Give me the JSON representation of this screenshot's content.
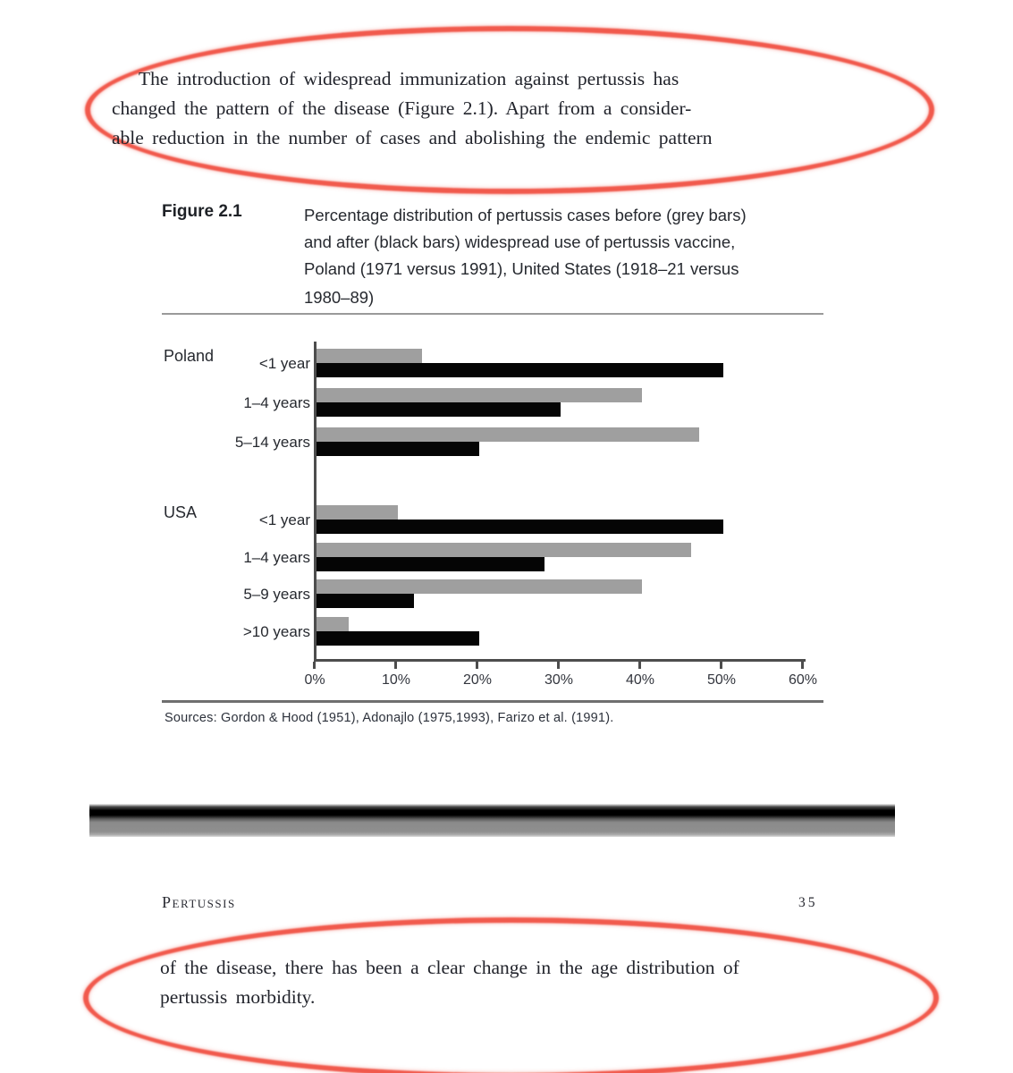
{
  "paragraph_top": {
    "line1": "The introduction of widespread immunization against pertussis has",
    "line2": "changed the pattern of the disease (Figure 2.1). Apart from a consider-",
    "line3": "able reduction in the number of cases and abolishing the endemic pattern"
  },
  "figure": {
    "label": "Figure 2.1",
    "caption_lines": [
      "Percentage distribution of pertussis cases before (grey bars)",
      "and after (black bars) widespread use of pertussis vaccine,",
      "Poland (1971 versus 1991), United States (1918–21 versus",
      "1980–89)"
    ]
  },
  "chart_data": {
    "type": "bar",
    "orientation": "horizontal",
    "title": "Percentage distribution of pertussis cases before (grey bars) and after (black bars) widespread use of pertussis vaccine, Poland (1971 versus 1991), United States (1918–21 versus 1980–89)",
    "xlabel": "",
    "ylabel": "",
    "xlim": [
      0,
      60
    ],
    "x_ticks": [
      "0%",
      "10%",
      "20%",
      "30%",
      "40%",
      "50%",
      "60%"
    ],
    "grid": false,
    "legend_position": "none (legend described in caption)",
    "series_legend": [
      {
        "name": "before vaccine (grey bars)",
        "color": "#9f9f9f"
      },
      {
        "name": "after vaccine (black bars)",
        "color": "#050505"
      }
    ],
    "groups": [
      {
        "label": "Poland",
        "rows": [
          {
            "category": "<1 year",
            "before_grey": 13,
            "after_black": 50
          },
          {
            "category": "1–4 years",
            "before_grey": 40,
            "after_black": 30
          },
          {
            "category": "5–14 years",
            "before_grey": 47,
            "after_black": 20
          }
        ]
      },
      {
        "label": "USA",
        "rows": [
          {
            "category": "<1 year",
            "before_grey": 10,
            "after_black": 50
          },
          {
            "category": "1–4 years",
            "before_grey": 46,
            "after_black": 28
          },
          {
            "category": "5–9 years",
            "before_grey": 40,
            "after_black": 12
          },
          {
            "category": ">10 years",
            "before_grey": 4,
            "after_black": 20
          }
        ]
      }
    ],
    "sources": "Sources: Gordon & Hood (1951), Adonajlo (1975,1993), Farizo et al. (1991)."
  },
  "footer": {
    "running_head": "Pertussis",
    "page_number": "35"
  },
  "paragraph_bottom": {
    "line1": "of the disease, there has been a clear change in the age distribution of",
    "line2": "pertussis morbidity."
  },
  "colors": {
    "annotation_red": "#f15a4d",
    "bar_grey": "#9f9f9f",
    "bar_black": "#050505",
    "axis_grey": "#4d4d4d"
  }
}
